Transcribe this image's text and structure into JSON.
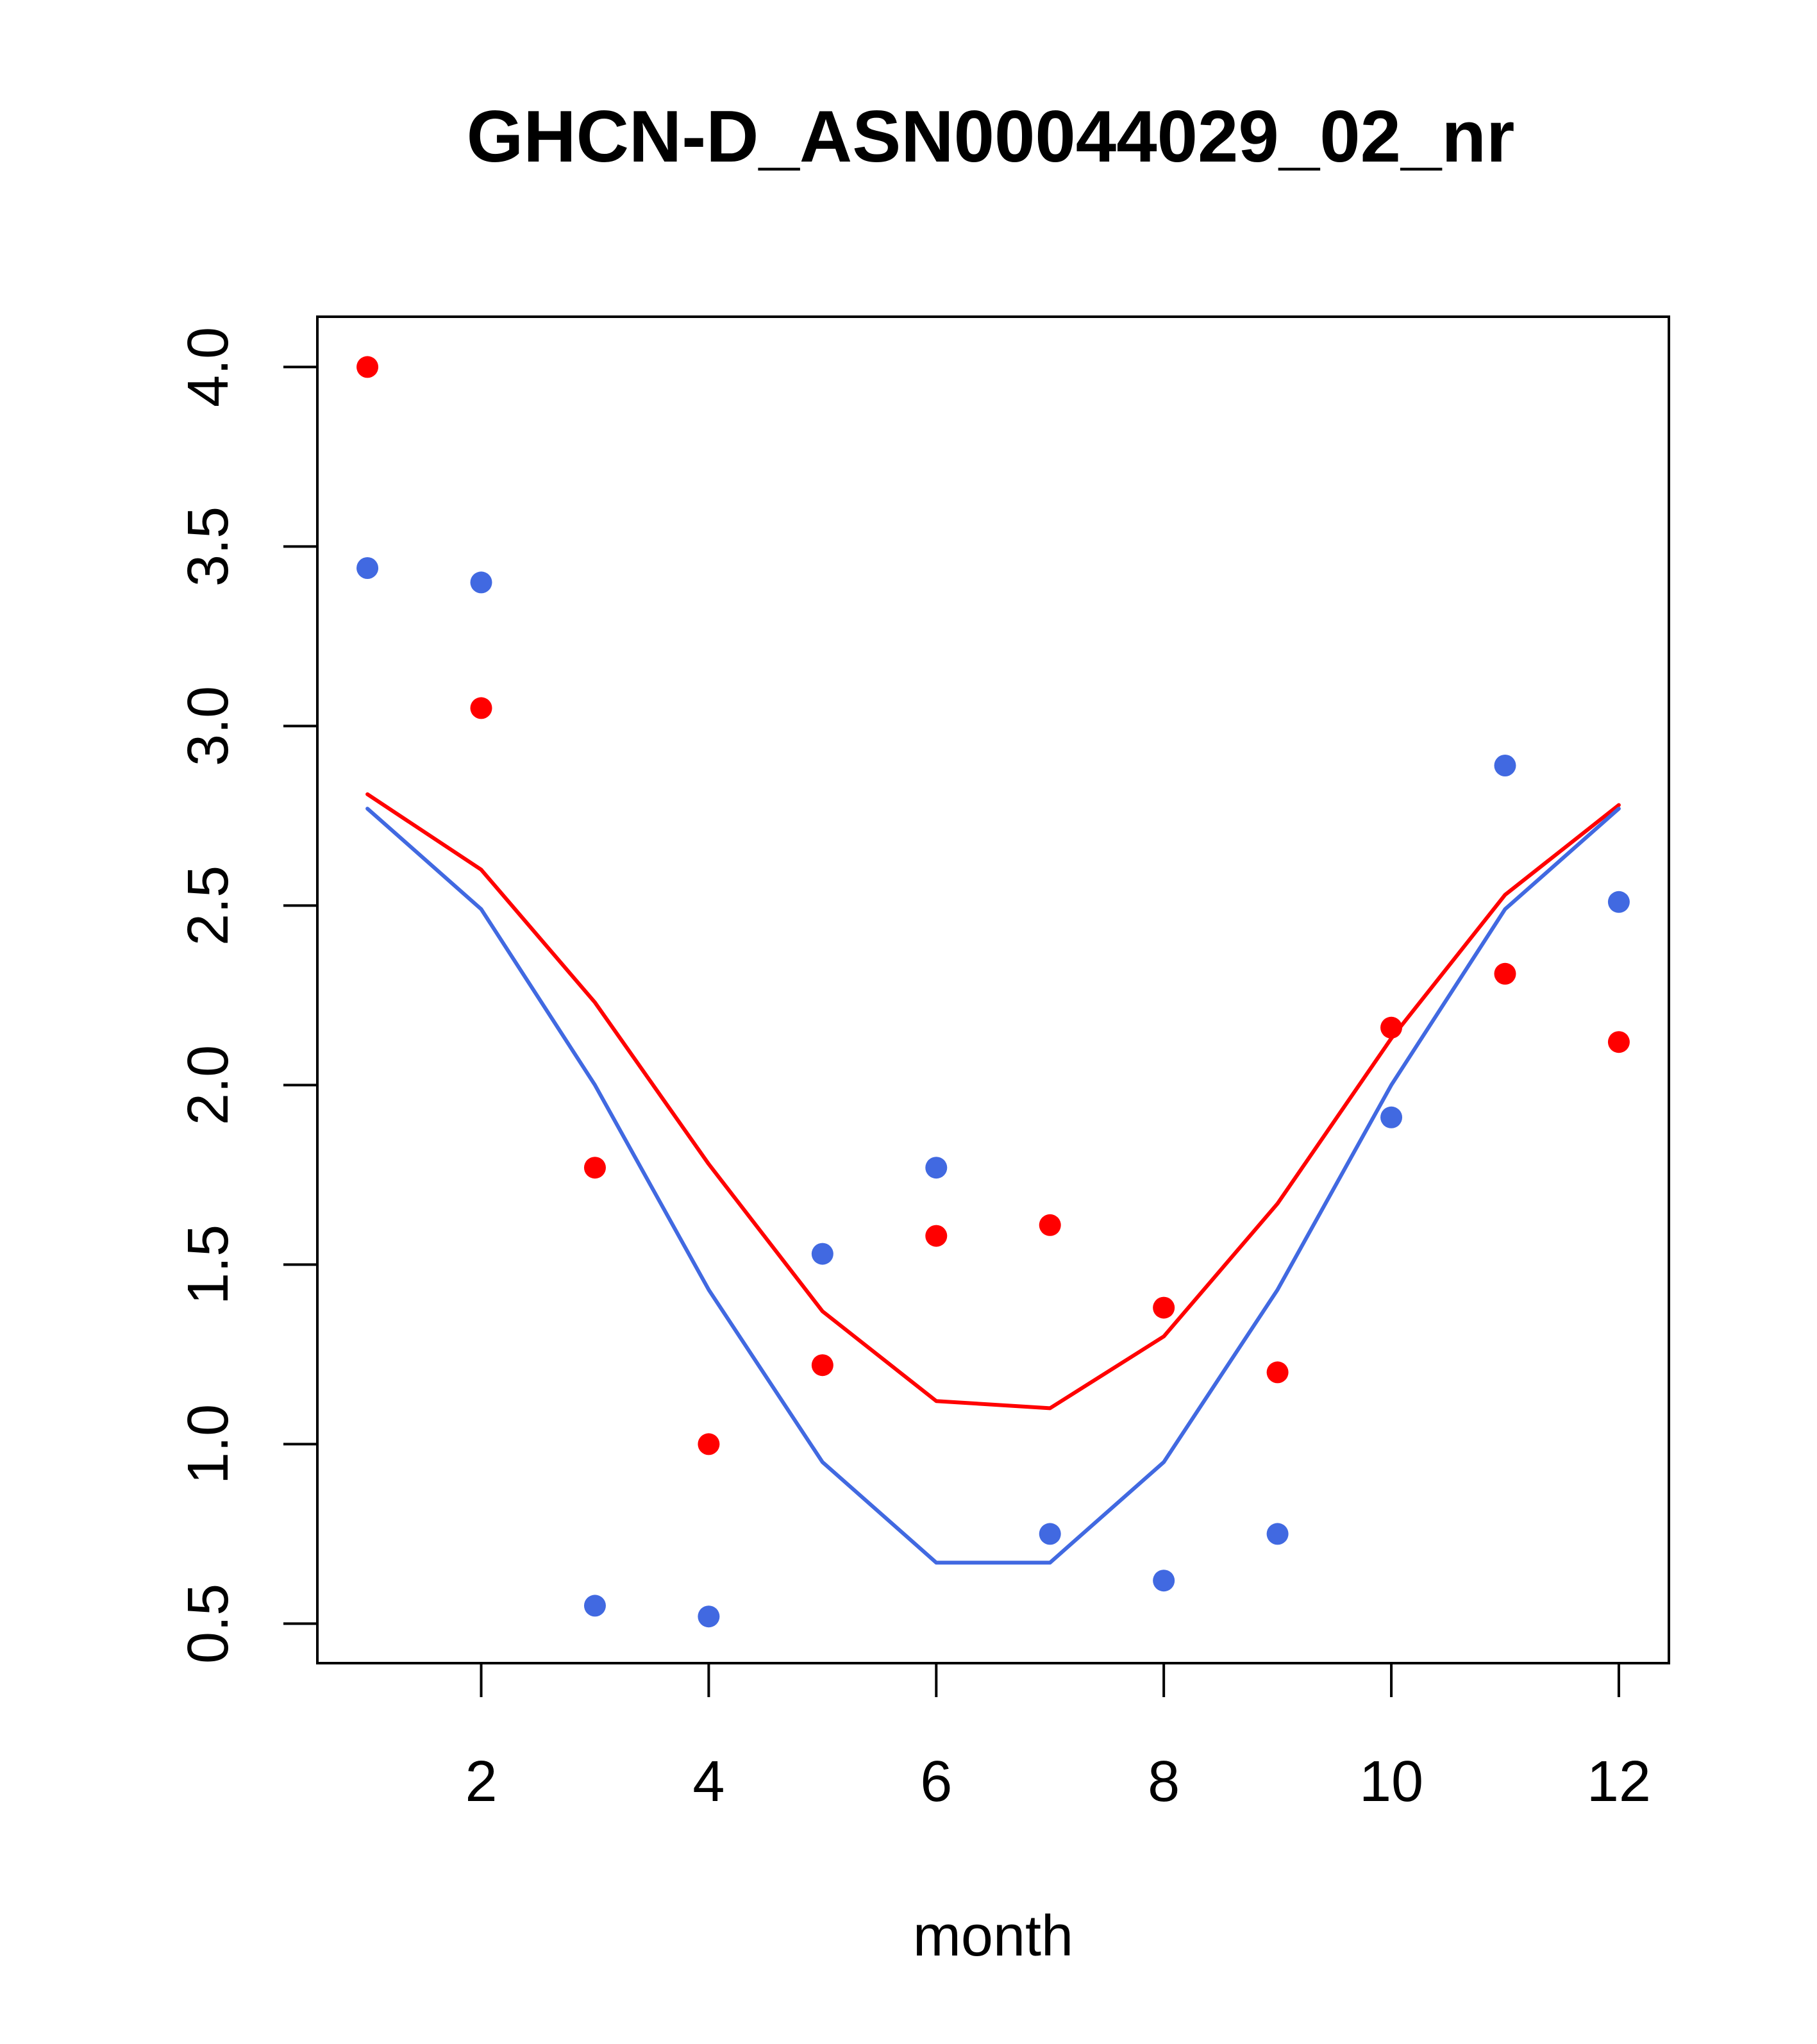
{
  "chart_data": {
    "type": "scatter",
    "title": "GHCN-D_ASN00044029_02_nr",
    "xlabel": "month",
    "ylabel": "",
    "xlim": [
      0.56,
      12.44
    ],
    "ylim": [
      0.39,
      4.14
    ],
    "x_ticks": [
      2,
      4,
      6,
      8,
      10,
      12
    ],
    "x_tick_labels": [
      "2",
      "4",
      "6",
      "8",
      "10",
      "12"
    ],
    "y_ticks": [
      0.5,
      1.0,
      1.5,
      2.0,
      2.5,
      3.0,
      3.5,
      4.0
    ],
    "y_tick_labels": [
      "0.5",
      "1.0",
      "1.5",
      "2.0",
      "2.5",
      "3.0",
      "3.5",
      "4.0"
    ],
    "grid": false,
    "x": [
      1,
      2,
      3,
      4,
      5,
      6,
      7,
      8,
      9,
      10,
      11,
      12
    ],
    "series": [
      {
        "color": "#ff0000",
        "points": [
          4.0,
          3.05,
          1.77,
          1.0,
          1.22,
          1.58,
          1.61,
          1.38,
          1.2,
          2.16,
          2.31,
          2.12
        ],
        "line": [
          2.81,
          2.6,
          2.23,
          1.78,
          1.37,
          1.12,
          1.1,
          1.3,
          1.67,
          2.13,
          2.53,
          2.78
        ]
      },
      {
        "color": "#4169e1",
        "points": [
          3.44,
          3.4,
          0.55,
          0.52,
          1.53,
          1.77,
          0.75,
          0.62,
          0.75,
          1.91,
          2.89,
          2.51
        ],
        "line": [
          2.77,
          2.49,
          2.0,
          1.43,
          0.95,
          0.67,
          0.67,
          0.95,
          1.43,
          2.0,
          2.49,
          2.77
        ]
      }
    ]
  }
}
